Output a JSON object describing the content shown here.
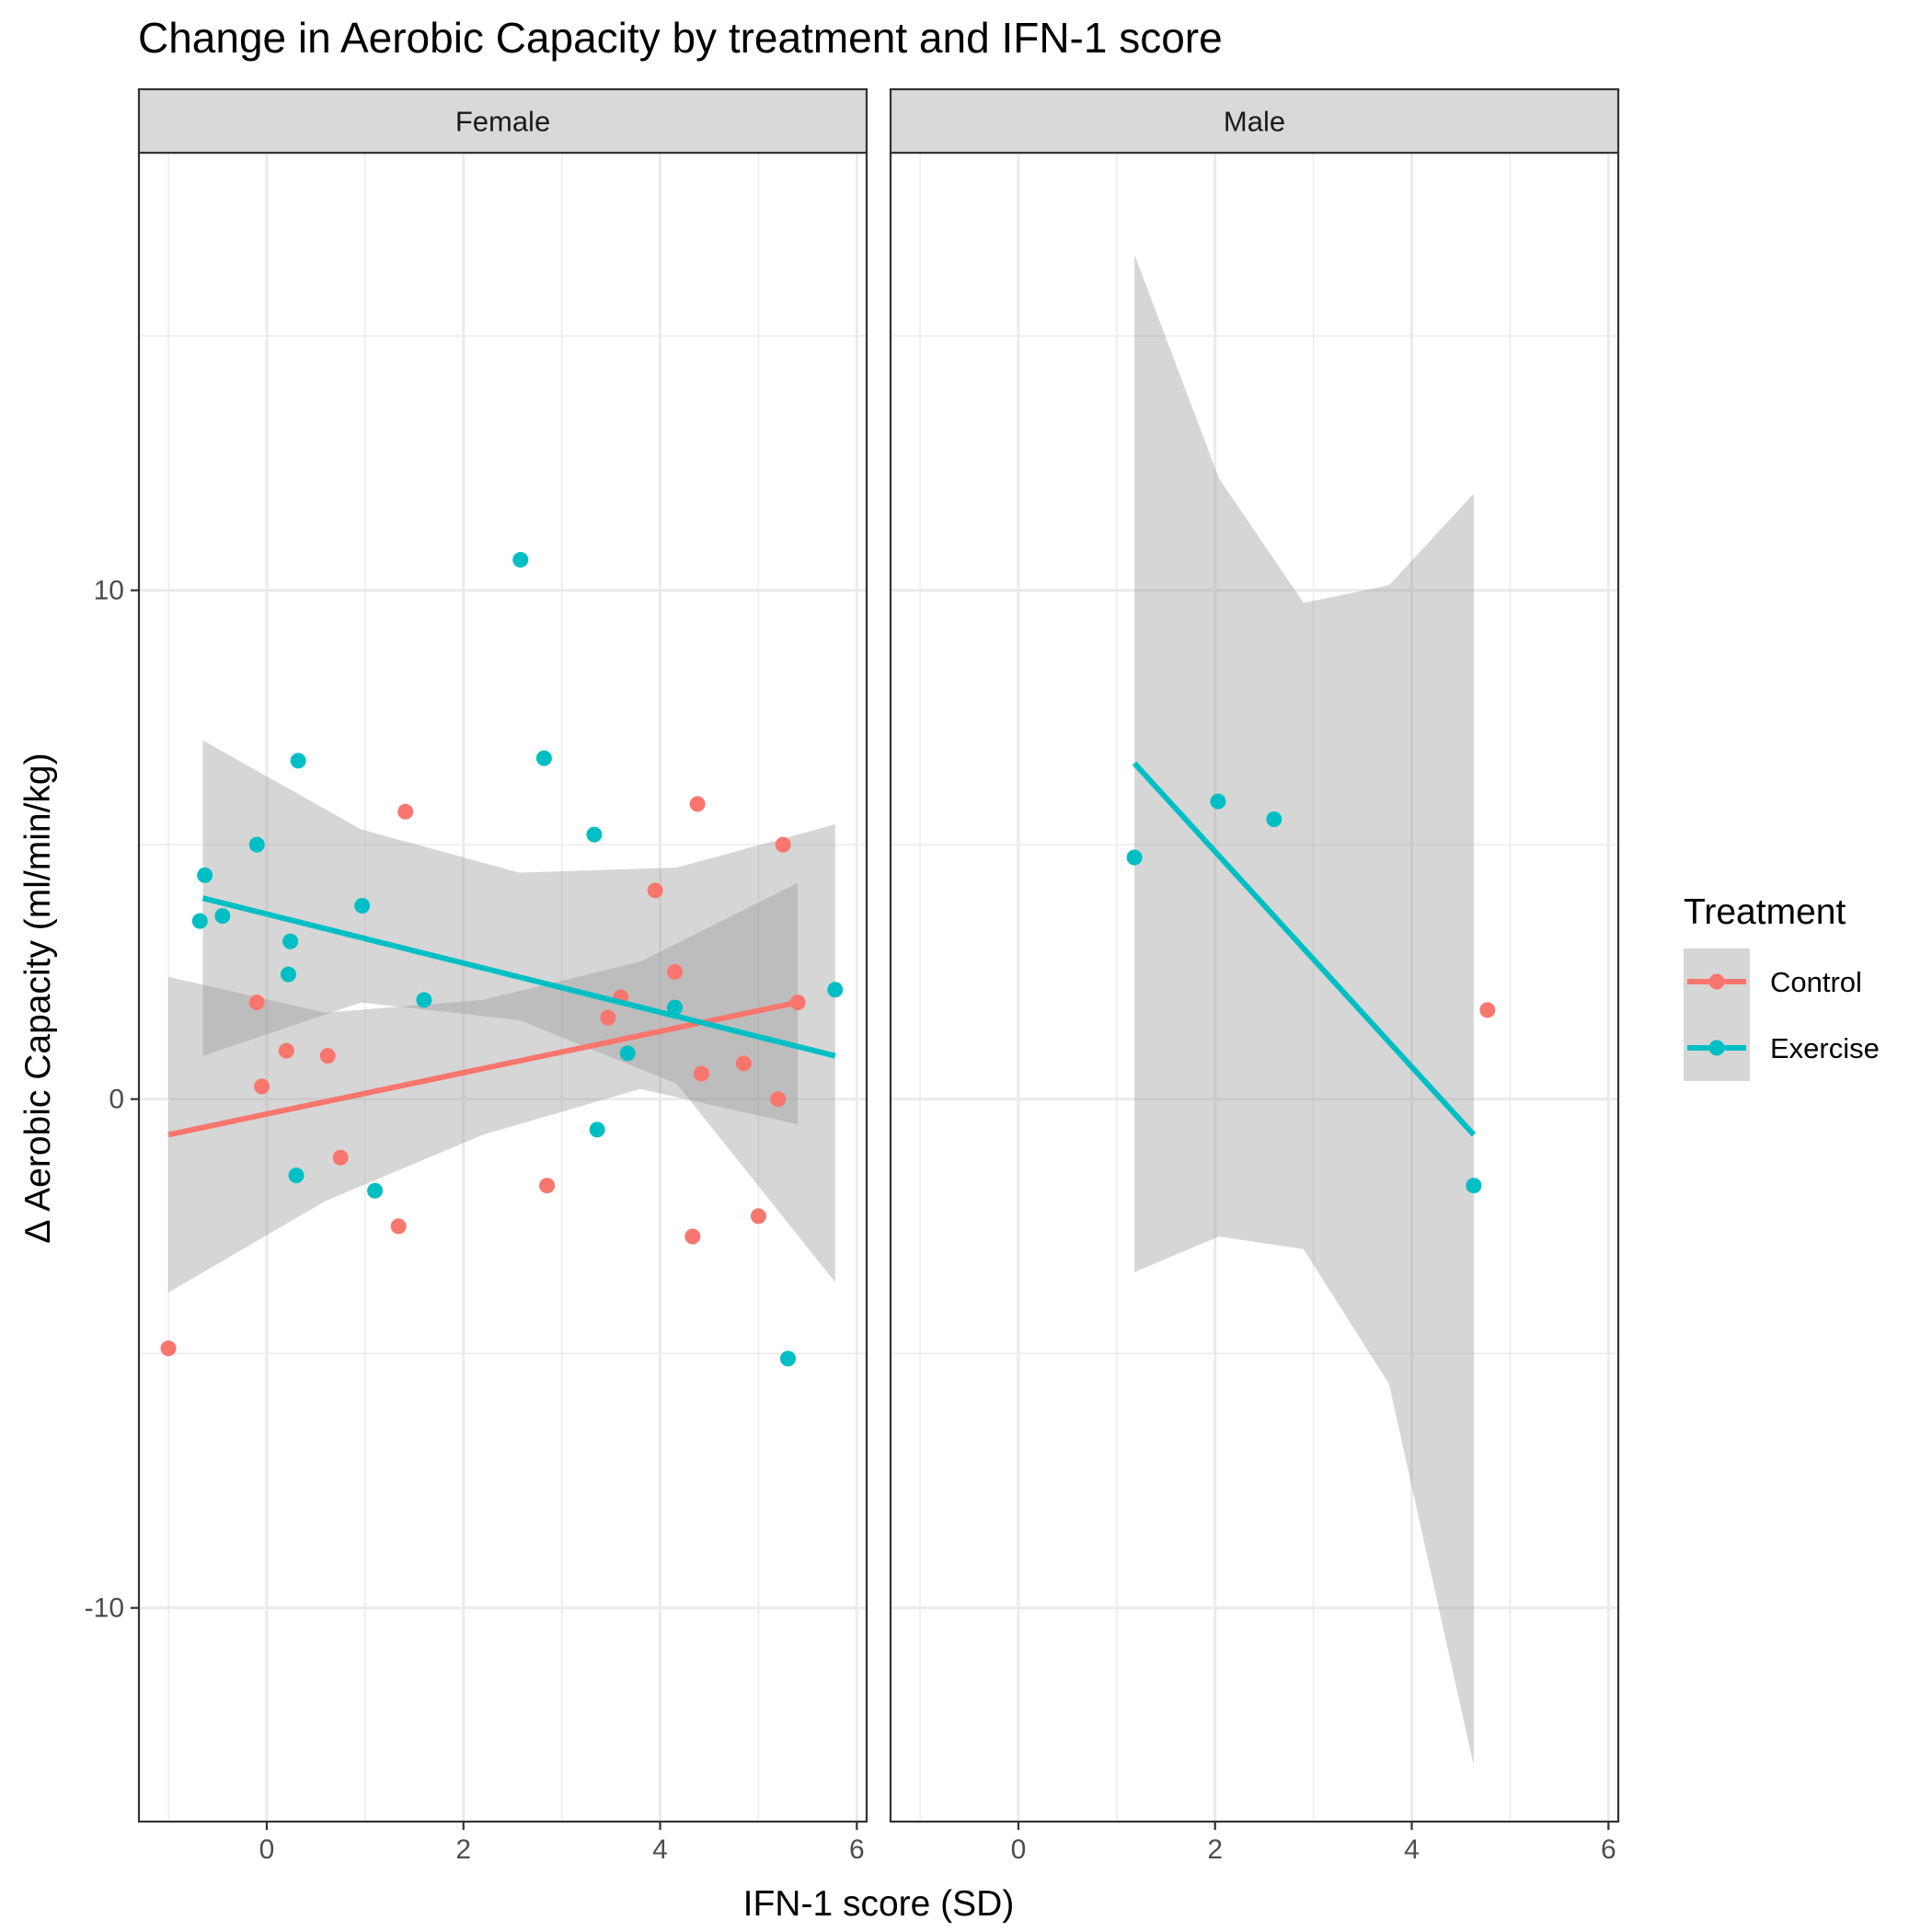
{
  "chart_data": {
    "type": "scatter",
    "title": "Change in Aerobic Capacity by treatment and IFN-1 score",
    "xlabel": "IFN-1 score (SD)",
    "ylabel": "Δ Aerobic Capacity (ml/min/kg)",
    "xlim": [
      -1.3,
      6.1
    ],
    "ylim": [
      -14.2,
      18.6
    ],
    "x_ticks": [
      0,
      2,
      4,
      6
    ],
    "x_tick_labels": [
      "0",
      "2",
      "4",
      "6"
    ],
    "y_ticks": [
      -10,
      0,
      10
    ],
    "y_tick_labels": [
      "-10",
      "0",
      "10"
    ],
    "grid": true,
    "legend": {
      "title": "Treatment",
      "placement": "right",
      "entries": [
        {
          "label": "Control",
          "color": "#F8766D"
        },
        {
          "label": "Exercise",
          "color": "#00BFC4"
        }
      ]
    },
    "panels": [
      {
        "name": "Female",
        "points": [
          {
            "group": "Control",
            "x": -1.0,
            "y": -4.9
          },
          {
            "group": "Control",
            "x": -0.1,
            "y": 1.9
          },
          {
            "group": "Control",
            "x": -0.05,
            "y": 0.25
          },
          {
            "group": "Control",
            "x": 0.2,
            "y": 0.95
          },
          {
            "group": "Control",
            "x": 0.62,
            "y": 0.85
          },
          {
            "group": "Control",
            "x": 0.75,
            "y": -1.15
          },
          {
            "group": "Control",
            "x": 1.34,
            "y": -2.5
          },
          {
            "group": "Control",
            "x": 1.41,
            "y": 5.65
          },
          {
            "group": "Control",
            "x": 2.85,
            "y": -1.7
          },
          {
            "group": "Control",
            "x": 3.47,
            "y": 1.6
          },
          {
            "group": "Control",
            "x": 3.6,
            "y": 2.0
          },
          {
            "group": "Control",
            "x": 3.95,
            "y": 4.1
          },
          {
            "group": "Control",
            "x": 4.15,
            "y": 2.5
          },
          {
            "group": "Control",
            "x": 4.33,
            "y": -2.7
          },
          {
            "group": "Control",
            "x": 4.38,
            "y": 5.8
          },
          {
            "group": "Control",
            "x": 4.42,
            "y": 0.5
          },
          {
            "group": "Control",
            "x": 4.85,
            "y": 0.7
          },
          {
            "group": "Control",
            "x": 5.0,
            "y": -2.3
          },
          {
            "group": "Control",
            "x": 5.2,
            "y": 0.0
          },
          {
            "group": "Control",
            "x": 5.25,
            "y": 5.0
          },
          {
            "group": "Control",
            "x": 5.4,
            "y": 1.9
          },
          {
            "group": "Exercise",
            "x": -0.68,
            "y": 3.5
          },
          {
            "group": "Exercise",
            "x": -0.63,
            "y": 4.4
          },
          {
            "group": "Exercise",
            "x": -0.45,
            "y": 3.6
          },
          {
            "group": "Exercise",
            "x": -0.1,
            "y": 5.0
          },
          {
            "group": "Exercise",
            "x": 0.22,
            "y": 2.45
          },
          {
            "group": "Exercise",
            "x": 0.24,
            "y": 3.1
          },
          {
            "group": "Exercise",
            "x": 0.3,
            "y": -1.5
          },
          {
            "group": "Exercise",
            "x": 0.32,
            "y": 6.65
          },
          {
            "group": "Exercise",
            "x": 0.97,
            "y": 3.8
          },
          {
            "group": "Exercise",
            "x": 1.1,
            "y": -1.8
          },
          {
            "group": "Exercise",
            "x": 1.6,
            "y": 1.95
          },
          {
            "group": "Exercise",
            "x": 2.58,
            "y": 10.6
          },
          {
            "group": "Exercise",
            "x": 2.82,
            "y": 6.7
          },
          {
            "group": "Exercise",
            "x": 3.33,
            "y": 5.2
          },
          {
            "group": "Exercise",
            "x": 3.36,
            "y": -0.6
          },
          {
            "group": "Exercise",
            "x": 3.67,
            "y": 0.9
          },
          {
            "group": "Exercise",
            "x": 4.15,
            "y": 1.8
          },
          {
            "group": "Exercise",
            "x": 5.3,
            "y": -5.1
          },
          {
            "group": "Exercise",
            "x": 5.78,
            "y": 2.15
          }
        ],
        "fits": [
          {
            "group": "Control",
            "line": [
              [
                -1.0,
                -0.7
              ],
              [
                5.4,
                1.9
              ]
            ],
            "band": {
              "x": [
                -1.0,
                0.6,
                2.2,
                3.8,
                5.4
              ],
              "lower": [
                -3.8,
                -2.0,
                -0.7,
                0.2,
                -0.5
              ],
              "upper": [
                2.4,
                1.7,
                1.95,
                2.7,
                4.25
              ]
            }
          },
          {
            "group": "Exercise",
            "line": [
              [
                -0.65,
                3.95
              ],
              [
                5.78,
                0.85
              ]
            ],
            "band": {
              "x": [
                -0.65,
                0.96,
                2.57,
                4.17,
                5.78
              ],
              "lower": [
                0.85,
                1.9,
                1.55,
                0.3,
                -3.6
              ],
              "upper": [
                7.05,
                5.3,
                4.45,
                4.55,
                5.4
              ]
            }
          }
        ]
      },
      {
        "name": "Male",
        "points": [
          {
            "group": "Exercise",
            "x": 1.18,
            "y": 4.75
          },
          {
            "group": "Exercise",
            "x": 2.03,
            "y": 5.85
          },
          {
            "group": "Exercise",
            "x": 2.6,
            "y": 5.5
          },
          {
            "group": "Exercise",
            "x": 4.63,
            "y": -1.7
          },
          {
            "group": "Control",
            "x": 4.77,
            "y": 1.75
          }
        ],
        "fits": [
          {
            "group": "Exercise",
            "line": [
              [
                1.18,
                6.6
              ],
              [
                4.63,
                -0.7
              ]
            ],
            "band": {
              "x": [
                1.18,
                2.04,
                2.9,
                3.77,
                4.63
              ],
              "lower": [
                -3.4,
                -2.7,
                -2.95,
                -5.6,
                -13.1
              ],
              "upper": [
                16.6,
                12.2,
                9.75,
                10.1,
                11.9
              ]
            }
          }
        ]
      }
    ]
  }
}
